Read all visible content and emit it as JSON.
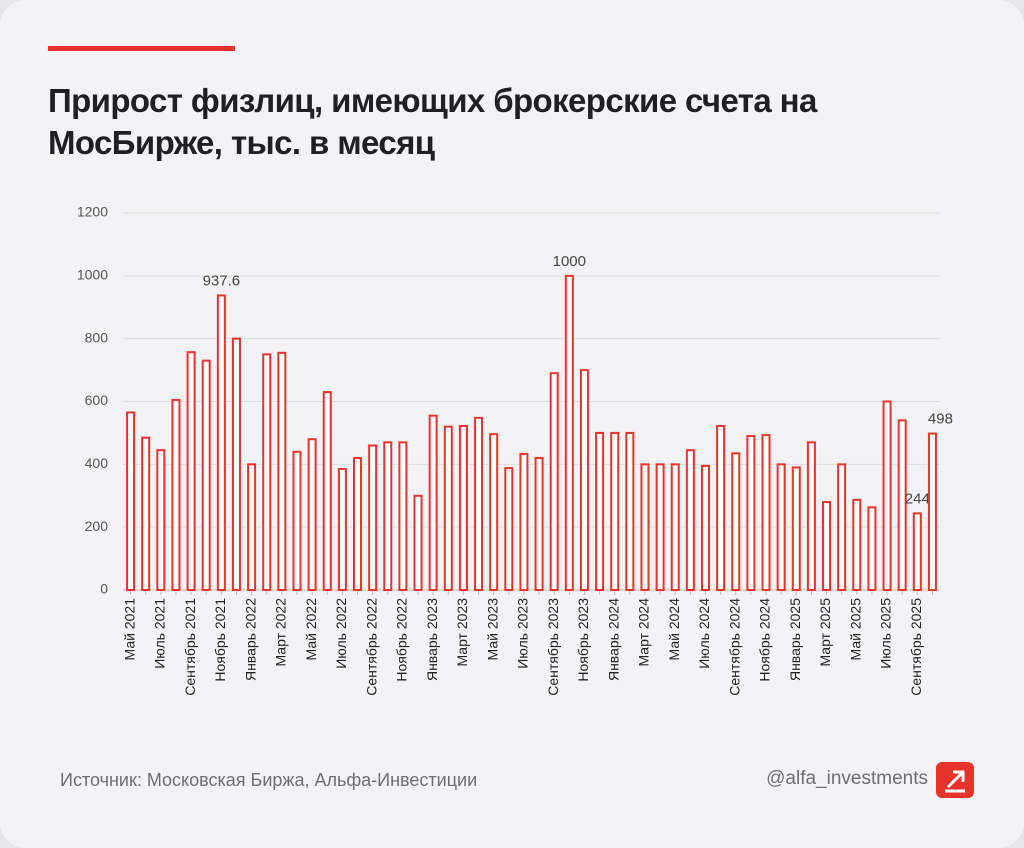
{
  "chart_data": {
    "type": "bar",
    "title": "Прирост физлиц, имеющих брокерские счета на МосБирже, тыс. в месяц",
    "categories": [
      "Май 2021",
      null,
      "Июль 2021",
      null,
      "Сентябрь 2021",
      null,
      "Ноябрь 2021",
      null,
      "Январь 2022",
      null,
      "Март 2022",
      null,
      "Май 2022",
      null,
      "Июль 2022",
      null,
      "Сентябрь 2022",
      null,
      "Ноябрь 2022",
      null,
      "Январь 2023",
      null,
      "Март 2023",
      null,
      "Май 2023",
      null,
      "Июль 2023",
      null,
      "Сентябрь 2023",
      null,
      "Ноябрь 2023",
      null,
      "Январь 2024",
      null,
      "Март 2024",
      null,
      "Май 2024",
      null,
      "Июль 2024",
      null,
      "Сентябрь 2024",
      null,
      "Ноябрь 2024",
      null,
      "Январь 2025",
      null,
      "Март 2025",
      null,
      "Май 2025",
      null,
      "Июль 2025",
      null,
      "Сентябрь 2025",
      null
    ],
    "values": [
      565,
      485,
      445,
      605,
      757,
      730,
      937.6,
      800,
      400,
      750,
      755,
      440,
      480,
      630,
      385,
      420,
      460,
      470,
      470,
      300,
      555,
      520,
      522,
      548,
      496,
      388,
      433,
      420,
      690,
      1000,
      700,
      500,
      500,
      500,
      400,
      400,
      400,
      445,
      395,
      522,
      435,
      490,
      493,
      400,
      390,
      470,
      280,
      400,
      287,
      263,
      600,
      540,
      244,
      498
    ],
    "value_labels": [
      null,
      null,
      null,
      null,
      null,
      null,
      "937.6",
      null,
      null,
      null,
      null,
      null,
      null,
      null,
      null,
      null,
      null,
      null,
      null,
      null,
      null,
      null,
      null,
      null,
      null,
      null,
      null,
      null,
      null,
      "1000",
      null,
      null,
      null,
      null,
      null,
      null,
      null,
      null,
      null,
      null,
      null,
      null,
      null,
      null,
      null,
      null,
      null,
      null,
      null,
      null,
      null,
      null,
      "244",
      "498"
    ],
    "color": "#e8332c",
    "ylim": [
      0,
      1200
    ],
    "yticks": [
      0,
      200,
      400,
      600,
      800,
      1000,
      1200
    ],
    "grid": true
  },
  "footer": {
    "source": "Источник: Московская Биржа, Альфа-Инвестиции",
    "handle": "@alfa_investments"
  }
}
